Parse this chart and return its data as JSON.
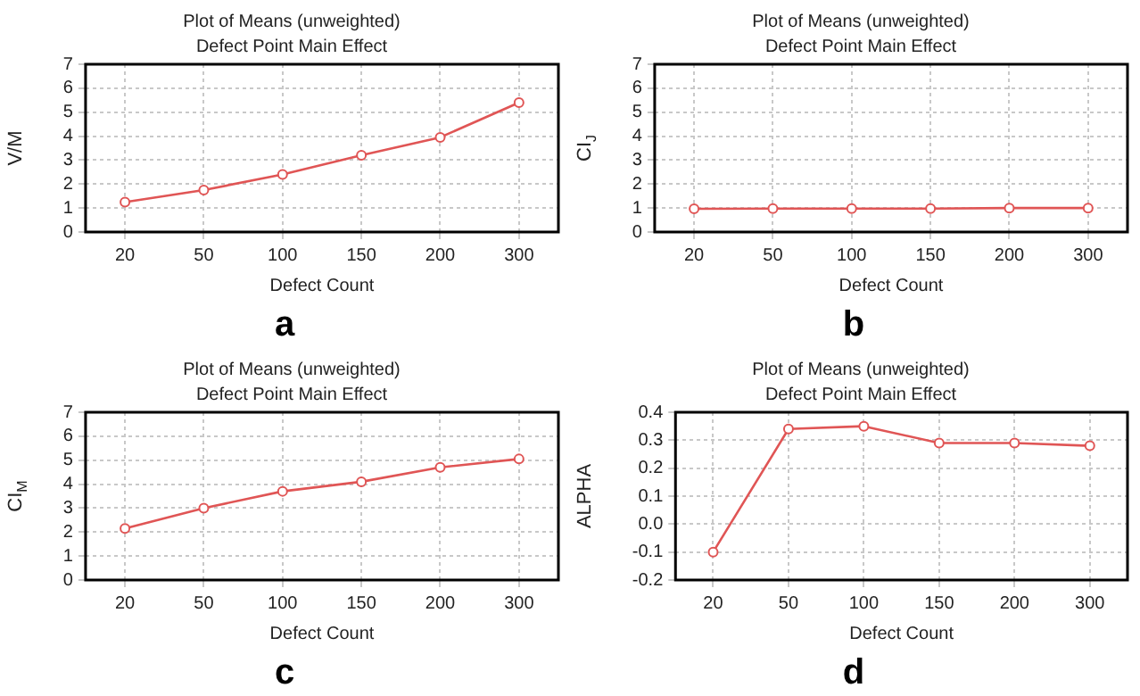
{
  "chart_data": [
    {
      "type": "line",
      "title": "Plot of Means (unweighted)",
      "subtitle": "Defect Point Main Effect",
      "xlabel": "Defect Count",
      "ylabel": "V/M",
      "annotations": [
        "a"
      ],
      "categories": [
        "20",
        "50",
        "100",
        "150",
        "200",
        "300"
      ],
      "series": [
        {
          "color": "#e05555",
          "values": [
            1.25,
            1.75,
            2.4,
            3.2,
            3.95,
            5.4
          ]
        }
      ],
      "ylim": [
        0,
        7
      ],
      "yticks": [
        0,
        1,
        2,
        3,
        4,
        5,
        6,
        7
      ],
      "grid": true,
      "legend": false,
      "marker": "circle",
      "line_style": "solid"
    },
    {
      "type": "line",
      "title": "Plot of Means (unweighted)",
      "subtitle": "Defect Point Main Effect",
      "xlabel": "Defect Count",
      "ylabel": "CI$_{J}$",
      "annotations": [
        "b"
      ],
      "categories": [
        "20",
        "50",
        "100",
        "150",
        "200",
        "300"
      ],
      "series": [
        {
          "color": "#e05555",
          "values": [
            0.97,
            0.98,
            0.98,
            0.98,
            1.0,
            1.0
          ]
        }
      ],
      "ylim": [
        0,
        7
      ],
      "yticks": [
        0,
        1,
        2,
        3,
        4,
        5,
        6,
        7
      ],
      "grid": true,
      "legend": false,
      "marker": "circle",
      "line_style": "solid"
    },
    {
      "type": "line",
      "title": "Plot of Means (unweighted)",
      "subtitle": "Defect Point Main Effect",
      "xlabel": "Defect Count",
      "ylabel": "CI$_{M}$",
      "annotations": [
        "c"
      ],
      "categories": [
        "20",
        "50",
        "100",
        "150",
        "200",
        "300"
      ],
      "series": [
        {
          "color": "#e05555",
          "values": [
            2.15,
            3.0,
            3.7,
            4.1,
            4.7,
            5.05
          ]
        }
      ],
      "ylim": [
        0,
        7
      ],
      "yticks": [
        0,
        1,
        2,
        3,
        4,
        5,
        6,
        7
      ],
      "grid": true,
      "legend": false,
      "marker": "circle",
      "line_style": "solid"
    },
    {
      "type": "line",
      "title": "Plot of Means (unweighted)",
      "subtitle": "Defect Point Main Effect",
      "xlabel": "Defect Count",
      "ylabel": "ALPHA",
      "annotations": [
        "d"
      ],
      "categories": [
        "20",
        "50",
        "100",
        "150",
        "200",
        "300"
      ],
      "series": [
        {
          "color": "#e05555",
          "values": [
            -0.1,
            0.34,
            0.35,
            0.29,
            0.29,
            0.28
          ]
        }
      ],
      "ylim": [
        -0.2,
        0.4
      ],
      "yticks": [
        -0.2,
        -0.1,
        {
          "value": 0,
          "label": "0.0"
        },
        0.1,
        0.2,
        0.3,
        0.4
      ],
      "grid": true,
      "legend": false,
      "marker": "circle",
      "line_style": "solid"
    }
  ]
}
